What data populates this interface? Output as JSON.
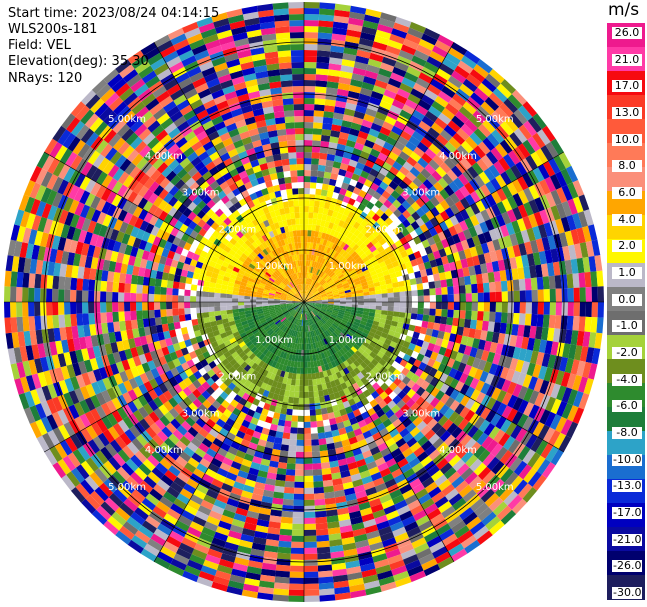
{
  "header": {
    "start_time": "Start time: 2023/08/24 04:14:15",
    "instrument": "WLS200s-181",
    "field": "Field: VEL",
    "elevation": "Elevation(deg): 35.30",
    "nrays": "NRays: 120"
  },
  "colorbar": {
    "unit": "m/s",
    "labels": [
      "26.0",
      "21.0",
      "17.0",
      "13.0",
      "10.0",
      "8.0",
      "6.0",
      "4.0",
      "2.0",
      "1.0",
      "0.0",
      "-1.0",
      "-2.0",
      "-4.0",
      "-6.0",
      "-8.0",
      "-10.0",
      "-13.0",
      "-17.0",
      "-21.0",
      "-26.0",
      "-30.0"
    ],
    "colors": [
      "#ee1a8e",
      "#ff3aa6",
      "#f60a10",
      "#fb3a26",
      "#ff5a3a",
      "#ff7a58",
      "#fb8f7a",
      "#ffa600",
      "#ffd400",
      "#fff700",
      "#bbb8c8",
      "#808080",
      "#6e6e6e",
      "#a5d23a",
      "#6e8e1e",
      "#2e8b2e",
      "#1e7e3a",
      "#2da3c8",
      "#1a6ed0",
      "#0a2ad8",
      "#0000c0",
      "#0a0aa0",
      "#00006e",
      "#1e1e5e"
    ]
  },
  "chart_data": {
    "type": "ppi",
    "field": "VEL",
    "unit": "m/s",
    "elevation_deg": 35.3,
    "nrays": 120,
    "range_rings_km": [
      1.0,
      2.0,
      3.0,
      4.0,
      5.0
    ],
    "range_ring_labels": [
      "1.00km",
      "2.00km",
      "3.00km",
      "4.00km",
      "5.00km"
    ],
    "near_field_pattern": {
      "north_half": "positive velocities (yellow/orange, approx 1 to 6 m/s) within about 2 km",
      "south_half": "negative velocities (green, approx -2 to -6 m/s) within about 2 km",
      "east_west_axis": "near zero (gray)",
      "far_field": "noisy, random velocities across full scale"
    }
  }
}
